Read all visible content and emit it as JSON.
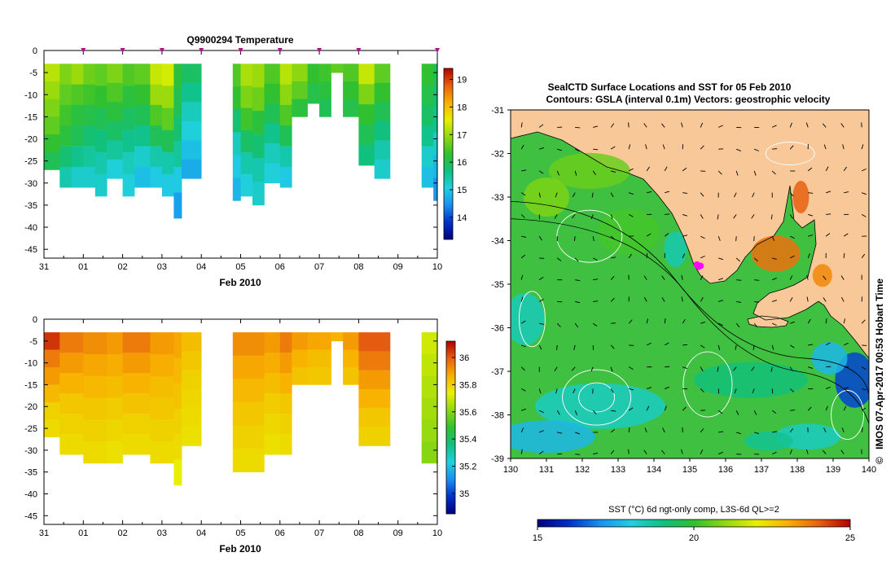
{
  "chart_data": [
    {
      "type": "heatmap",
      "name": "temperature-section",
      "title": "Q9900294  Temperature",
      "xlabel": "Feb 2010",
      "x_tick_labels": [
        "31",
        "01",
        "02",
        "03",
        "04",
        "05",
        "06",
        "07",
        "08",
        "09",
        "10"
      ],
      "y_tick_labels": [
        "0",
        "-5",
        "-10",
        "-15",
        "-20",
        "-25",
        "-30",
        "-35",
        "-40",
        "-45"
      ],
      "ylim": [
        -47,
        0
      ],
      "profile_markers_days": [
        1,
        2,
        3,
        4,
        5,
        6,
        7,
        8,
        10
      ],
      "colorbar": {
        "min": 13.2,
        "max": 19.4,
        "tick_labels": [
          "14",
          "15",
          "16",
          "17",
          "18",
          "19"
        ]
      },
      "profiles": [
        {
          "t0": 0.0,
          "t1": 0.4,
          "bottom": -27,
          "values": [
            17.2,
            17.0,
            16.8,
            16.6,
            16.3,
            16.0
          ]
        },
        {
          "t0": 0.4,
          "t1": 0.7,
          "bottom": -31,
          "values": [
            16.8,
            16.6,
            16.4,
            16.2,
            15.8,
            15.4
          ]
        },
        {
          "t0": 0.7,
          "t1": 1.0,
          "bottom": -31,
          "values": [
            17.0,
            16.5,
            16.2,
            16.0,
            15.6,
            15.2
          ]
        },
        {
          "t0": 1.0,
          "t1": 1.3,
          "bottom": -31,
          "values": [
            16.7,
            16.4,
            16.1,
            15.8,
            15.5,
            15.2
          ]
        },
        {
          "t0": 1.3,
          "t1": 1.6,
          "bottom": -33,
          "values": [
            16.6,
            16.3,
            16.0,
            15.7,
            15.4,
            15.2
          ]
        },
        {
          "t0": 1.6,
          "t1": 2.0,
          "bottom": -29,
          "values": [
            16.8,
            16.5,
            16.2,
            15.9,
            15.5,
            15.1
          ]
        },
        {
          "t0": 2.0,
          "t1": 2.3,
          "bottom": -33,
          "values": [
            16.5,
            16.2,
            15.9,
            15.6,
            15.3,
            15.1
          ]
        },
        {
          "t0": 2.3,
          "t1": 2.7,
          "bottom": -31,
          "values": [
            16.6,
            16.3,
            16.0,
            15.6,
            15.2,
            14.9
          ]
        },
        {
          "t0": 2.7,
          "t1": 3.0,
          "bottom": -31,
          "values": [
            17.3,
            17.0,
            16.5,
            16.0,
            15.4,
            15.0
          ]
        },
        {
          "t0": 3.0,
          "t1": 3.3,
          "bottom": -33,
          "values": [
            17.4,
            17.0,
            16.6,
            16.0,
            15.4,
            15.0
          ]
        },
        {
          "t0": 3.3,
          "t1": 3.5,
          "bottom": -38,
          "values": [
            16.2,
            16.0,
            15.8,
            15.5,
            15.0,
            14.6
          ]
        },
        {
          "t0": 3.5,
          "t1": 4.0,
          "bottom": -29,
          "values": [
            15.9,
            15.6,
            15.3,
            15.1,
            14.9,
            14.7
          ]
        },
        {
          "t0": 4.8,
          "t1": 5.0,
          "bottom": -34,
          "values": [
            16.5,
            16.3,
            15.8,
            15.3,
            15.0,
            14.8
          ]
        },
        {
          "t0": 5.0,
          "t1": 5.3,
          "bottom": -33,
          "values": [
            17.1,
            16.8,
            16.4,
            15.9,
            15.4,
            15.1
          ]
        },
        {
          "t0": 5.3,
          "t1": 5.6,
          "bottom": -35,
          "values": [
            17.0,
            16.7,
            16.2,
            15.8,
            15.4,
            15.2
          ]
        },
        {
          "t0": 5.6,
          "t1": 6.0,
          "bottom": -30,
          "values": [
            16.5,
            16.3,
            16.0,
            15.6,
            15.3,
            15.1
          ]
        },
        {
          "t0": 6.0,
          "t1": 6.3,
          "bottom": -31,
          "values": [
            17.2,
            16.9,
            16.5,
            16.0,
            15.4,
            15.0
          ]
        },
        {
          "t0": 6.3,
          "t1": 6.7,
          "bottom": -15,
          "values": [
            16.9,
            16.6,
            16.2
          ]
        },
        {
          "t0": 6.7,
          "t1": 7.0,
          "bottom": -12,
          "values": [
            16.3,
            16.1
          ]
        },
        {
          "t0": 7.0,
          "t1": 7.3,
          "bottom": -15,
          "values": [
            16.4,
            16.2,
            16.0
          ]
        },
        {
          "t0": 7.3,
          "t1": 7.6,
          "bottom": -5,
          "values": [
            16.6
          ]
        },
        {
          "t0": 7.6,
          "t1": 8.0,
          "bottom": -15,
          "values": [
            16.5,
            16.3,
            16.1
          ]
        },
        {
          "t0": 8.0,
          "t1": 8.4,
          "bottom": -26,
          "values": [
            17.3,
            16.8,
            16.3,
            16.0,
            15.7
          ]
        },
        {
          "t0": 8.4,
          "t1": 8.8,
          "bottom": -29,
          "values": [
            16.6,
            16.3,
            16.0,
            15.7,
            15.4,
            15.2
          ]
        },
        {
          "t0": 9.6,
          "t1": 9.9,
          "bottom": -31,
          "values": [
            16.3,
            16.1,
            15.9,
            15.6,
            15.2,
            14.9
          ]
        },
        {
          "t0": 9.9,
          "t1": 10.0,
          "bottom": -34,
          "values": [
            16.0,
            15.8,
            15.6,
            15.2,
            14.8,
            14.5
          ]
        }
      ]
    },
    {
      "type": "heatmap",
      "name": "salinity-section",
      "title": "",
      "xlabel": "Feb 2010",
      "x_tick_labels": [
        "31",
        "01",
        "02",
        "03",
        "04",
        "05",
        "06",
        "07",
        "08",
        "09",
        "10"
      ],
      "y_tick_labels": [
        "0",
        "-5",
        "-10",
        "-15",
        "-20",
        "-25",
        "-30",
        "-35",
        "-40",
        "-45"
      ],
      "ylim": [
        -47,
        0
      ],
      "colorbar": {
        "min": 34.85,
        "max": 36.12,
        "tick_labels": [
          "35",
          "35.2",
          "35.4",
          "35.6",
          "35.8",
          "36"
        ]
      },
      "profiles": [
        {
          "t0": 0.0,
          "t1": 0.4,
          "bottom": -27,
          "values": [
            36.05,
            35.95,
            35.9,
            35.85,
            35.8,
            35.78
          ]
        },
        {
          "t0": 0.4,
          "t1": 1.0,
          "bottom": -31,
          "values": [
            35.95,
            35.9,
            35.86,
            35.82,
            35.8,
            35.78
          ]
        },
        {
          "t0": 1.0,
          "t1": 1.6,
          "bottom": -33,
          "values": [
            35.92,
            35.88,
            35.85,
            35.82,
            35.8,
            35.78
          ]
        },
        {
          "t0": 1.6,
          "t1": 2.0,
          "bottom": -33,
          "values": [
            35.9,
            35.87,
            35.84,
            35.81,
            35.79,
            35.77
          ]
        },
        {
          "t0": 2.0,
          "t1": 2.7,
          "bottom": -31,
          "values": [
            35.95,
            35.9,
            35.86,
            35.83,
            35.8,
            35.78
          ]
        },
        {
          "t0": 2.7,
          "t1": 3.3,
          "bottom": -33,
          "values": [
            35.9,
            35.87,
            35.84,
            35.82,
            35.8,
            35.78
          ]
        },
        {
          "t0": 3.3,
          "t1": 3.5,
          "bottom": -38,
          "values": [
            35.88,
            35.85,
            35.83,
            35.8,
            35.78,
            35.74
          ]
        },
        {
          "t0": 3.5,
          "t1": 4.0,
          "bottom": -29,
          "values": [
            35.84,
            35.82,
            35.8,
            35.79,
            35.78,
            35.77
          ]
        },
        {
          "t0": 4.8,
          "t1": 5.6,
          "bottom": -35,
          "values": [
            35.92,
            35.88,
            35.85,
            35.82,
            35.8,
            35.78
          ]
        },
        {
          "t0": 5.6,
          "t1": 6.0,
          "bottom": -31,
          "values": [
            35.9,
            35.87,
            35.84,
            35.81,
            35.79,
            35.77
          ]
        },
        {
          "t0": 6.0,
          "t1": 6.3,
          "bottom": -31,
          "values": [
            35.95,
            35.9,
            35.86,
            35.82,
            35.8,
            35.78
          ]
        },
        {
          "t0": 6.3,
          "t1": 6.7,
          "bottom": -15,
          "values": [
            35.9,
            35.86,
            35.83
          ]
        },
        {
          "t0": 6.7,
          "t1": 7.3,
          "bottom": -15,
          "values": [
            35.88,
            35.84,
            35.82
          ]
        },
        {
          "t0": 7.3,
          "t1": 7.6,
          "bottom": -5,
          "values": [
            35.86
          ]
        },
        {
          "t0": 7.6,
          "t1": 8.0,
          "bottom": -15,
          "values": [
            35.9,
            35.86,
            35.83
          ]
        },
        {
          "t0": 8.0,
          "t1": 8.8,
          "bottom": -29,
          "values": [
            36.0,
            35.95,
            35.9,
            35.86,
            35.82,
            35.8
          ]
        },
        {
          "t0": 9.6,
          "t1": 10.0,
          "bottom": -33,
          "values": [
            35.7,
            35.68,
            35.66,
            35.64,
            35.62,
            35.6
          ]
        }
      ]
    },
    {
      "type": "heatmap",
      "name": "sst-map",
      "title": "SealCTD Surface Locations and SST for 05 Feb 2010",
      "subtitle": "Contours: GSLA (interval 0.1m)  Vectors: geostrophic velocity",
      "x_tick_labels": [
        "130",
        "131",
        "132",
        "133",
        "134",
        "135",
        "136",
        "137",
        "138",
        "139",
        "140"
      ],
      "y_tick_labels": [
        "-31",
        "-32",
        "-33",
        "-34",
        "-35",
        "-36",
        "-37",
        "-38",
        "-39"
      ],
      "xlim": [
        130,
        140
      ],
      "ylim": [
        -39,
        -31
      ],
      "colorbar": {
        "label": "SST (°C) 6d ngt-only comp, L3S-6d QL>=2",
        "min": 15,
        "max": 25,
        "tick_labels": [
          "15",
          "20",
          "25"
        ]
      },
      "seal_locations": [
        [
          135.2,
          -34.55
        ],
        [
          135.3,
          -34.58
        ],
        [
          135.25,
          -34.6
        ]
      ],
      "credit": "IMOS 07-Apr-2017 00:53 Hobart Time",
      "credit_symbol": "©"
    }
  ],
  "colors": {
    "land": "#f8c898",
    "seal_marker": "#ff00ff",
    "profile_marker": "#b01090",
    "colormap": [
      "#00007f",
      "#0030c8",
      "#1890f0",
      "#20d0e0",
      "#10c080",
      "#30c030",
      "#90d810",
      "#e8f000",
      "#f8b000",
      "#e86010",
      "#b00000"
    ]
  }
}
